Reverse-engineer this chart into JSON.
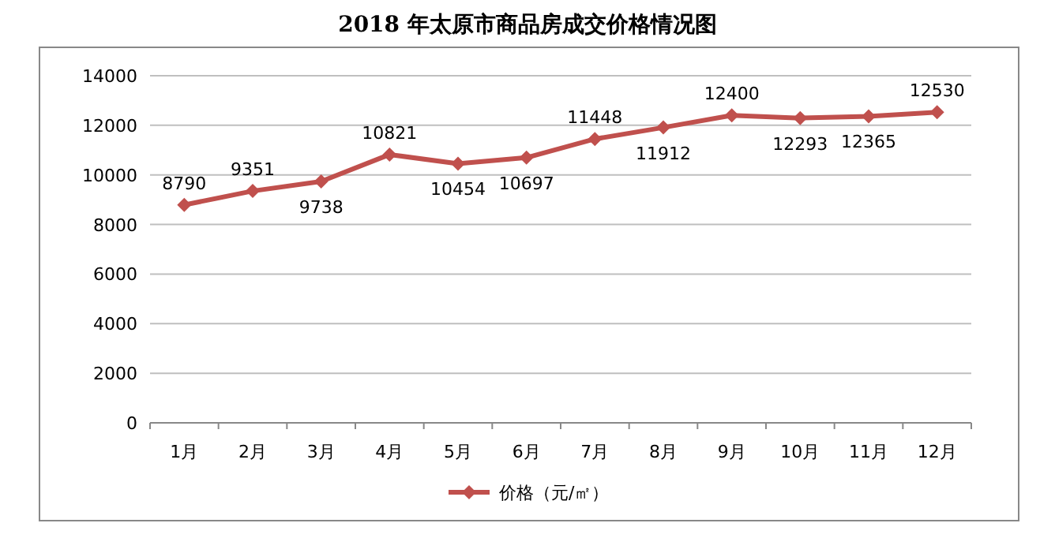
{
  "chart_data": {
    "type": "line",
    "title": "2018 年太原市商品房成交价格情况图",
    "categories": [
      "1月",
      "2月",
      "3月",
      "4月",
      "5月",
      "6月",
      "7月",
      "8月",
      "9月",
      "10月",
      "11月",
      "12月"
    ],
    "series": [
      {
        "name": "价格（元/㎡）",
        "color": "#c0504d",
        "values": [
          8790,
          9351,
          9738,
          10821,
          10454,
          10697,
          11448,
          11912,
          12400,
          12293,
          12365,
          12530
        ]
      }
    ],
    "ylim": [
      0,
      14000
    ],
    "yticks": [
      0,
      2000,
      4000,
      6000,
      8000,
      10000,
      12000,
      14000
    ],
    "grid": "y",
    "legend": "bottom",
    "marker": "diamond",
    "line_style": "solid",
    "data_labels": true
  }
}
